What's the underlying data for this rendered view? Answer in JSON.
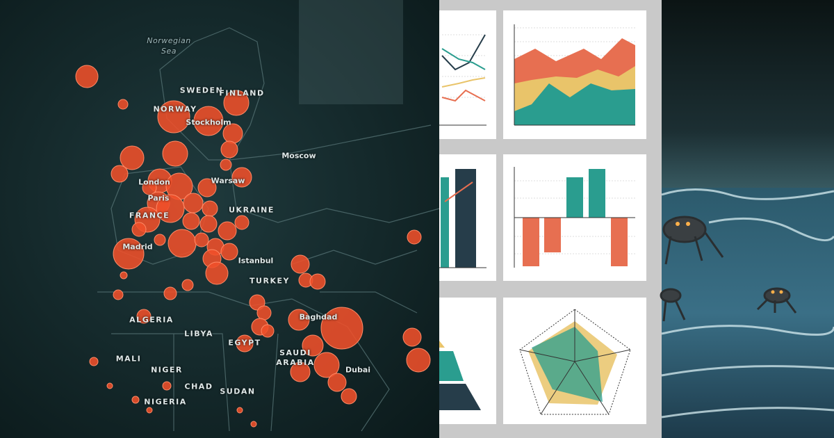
{
  "map": {
    "labels": [
      "Norwegian Sea",
      "SWEDEN",
      "FINLAND",
      "NORWAY",
      "Stockholm",
      "Moscow",
      "Warsaw",
      "London",
      "Paris",
      "FRANCE",
      "UKRAINE",
      "Madrid",
      "Istanbul",
      "TURKEY",
      "ALGERIA",
      "LIBYA",
      "EGYPT",
      "Baghdad",
      "SAUDI ARABIA",
      "Dubai",
      "MALI",
      "NIGER",
      "CHAD",
      "SUDAN",
      "NIGERIA"
    ]
  }
}
